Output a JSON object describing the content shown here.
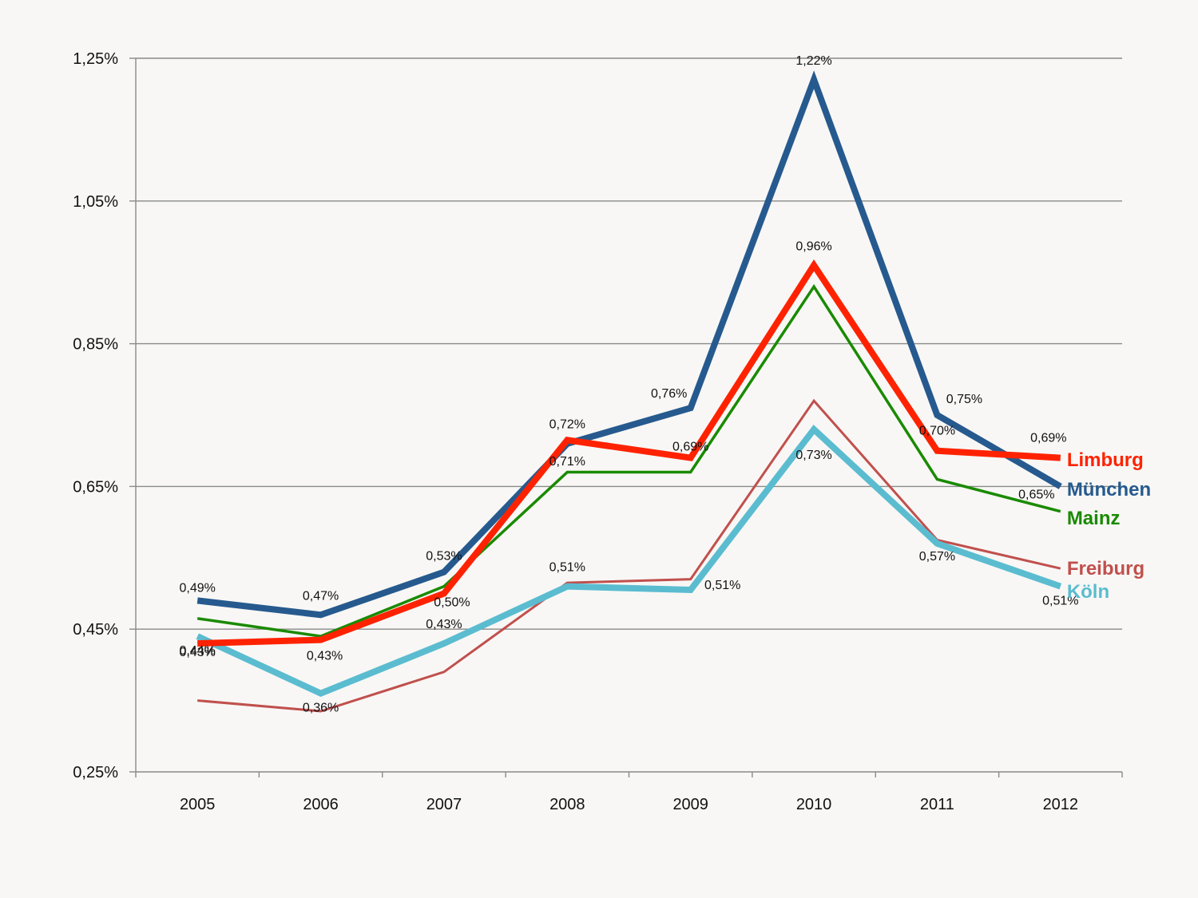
{
  "chart_data": {
    "type": "line",
    "title": "",
    "xlabel": "",
    "ylabel": "",
    "categories": [
      "2005",
      "2006",
      "2007",
      "2008",
      "2009",
      "2010",
      "2011",
      "2012"
    ],
    "ylim": [
      0.25,
      1.25
    ],
    "yticks": [
      0.25,
      0.45,
      0.65,
      0.85,
      1.05,
      1.25
    ],
    "ytick_labels": [
      "0,25%",
      "0,45%",
      "0,65%",
      "0,85%",
      "1,05%",
      "1,25%"
    ],
    "grid": true,
    "legend": "right end of lines",
    "series": [
      {
        "name": "Freiburg",
        "color": "#c0504d",
        "stroke": 3,
        "values": [
          0.35,
          0.335,
          0.39,
          0.515,
          0.52,
          0.77,
          0.575,
          0.535
        ],
        "labels": [
          null,
          null,
          null,
          null,
          null,
          null,
          null,
          null
        ]
      },
      {
        "name": "Mainz",
        "color": "#1a8a00",
        "stroke": 3.5,
        "values": [
          0.465,
          0.44,
          0.51,
          0.67,
          0.67,
          0.93,
          0.66,
          0.615
        ],
        "labels": [
          null,
          null,
          null,
          null,
          null,
          null,
          null,
          null
        ]
      },
      {
        "name": "Köln",
        "color": "#5bbcd0",
        "stroke": 8,
        "values": [
          0.44,
          0.36,
          0.43,
          0.51,
          0.505,
          0.73,
          0.57,
          0.51
        ],
        "labels": [
          "0,44%",
          "0,36%",
          "0,43%",
          "0,51%",
          "0,51%",
          "0,73%",
          "0,57%",
          "0,51%"
        ]
      },
      {
        "name": "München",
        "color": "#265a8e",
        "stroke": 8,
        "values": [
          0.49,
          0.47,
          0.53,
          0.71,
          0.76,
          1.22,
          0.75,
          0.65
        ],
        "labels": [
          "0,49%",
          "0,47%",
          "0,53%",
          "0,71%",
          "0,76%",
          "1,22%",
          "0,75%",
          "0,65%"
        ]
      },
      {
        "name": "Limburg",
        "color": "#ff2200",
        "stroke": 8,
        "values": [
          0.43,
          0.435,
          0.5,
          0.715,
          0.69,
          0.96,
          0.7,
          0.69
        ],
        "labels": [
          "0,43%",
          "0,43%",
          "0,50%",
          "0,72%",
          "0,69%",
          "0,96%",
          "0,70%",
          "0,69%"
        ]
      }
    ]
  }
}
